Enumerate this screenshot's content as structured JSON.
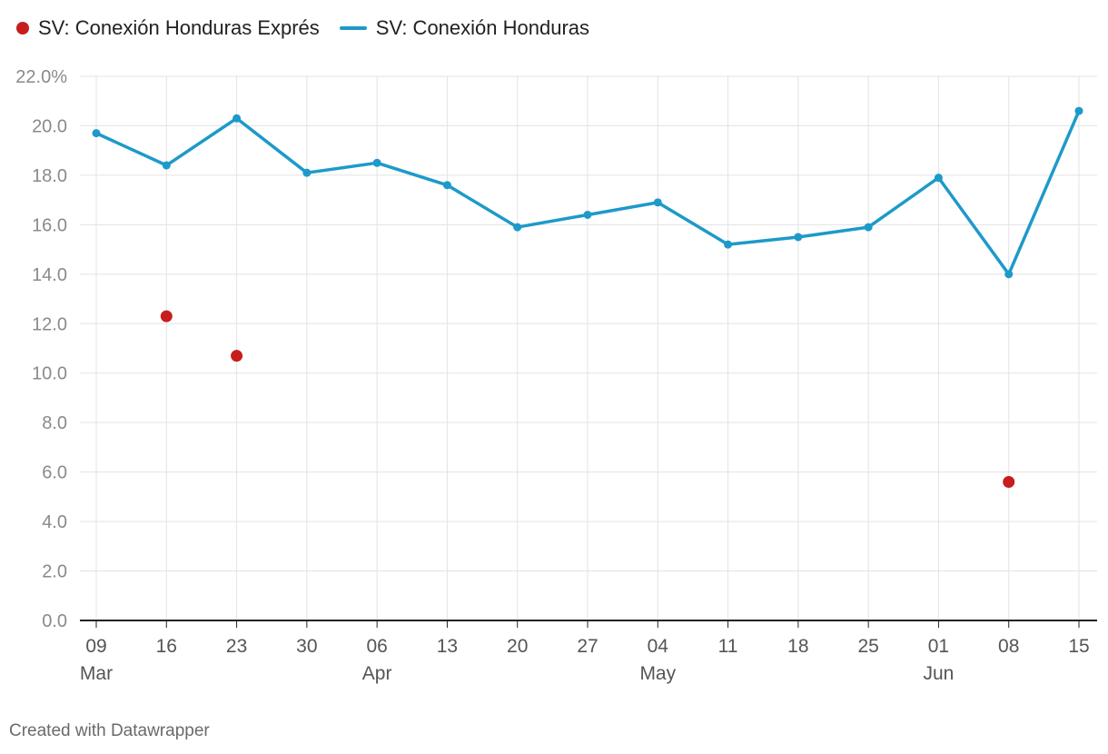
{
  "legend": {
    "items": [
      {
        "label": "SV: Conexión Honduras Exprés",
        "color": "#c71e1d",
        "style": "dot"
      },
      {
        "label": "SV: Conexión Honduras",
        "color": "#1d9ac9",
        "style": "line"
      }
    ]
  },
  "credit": "Created with Datawrapper",
  "chart_data": {
    "type": "line",
    "categories": [
      "09",
      "16",
      "23",
      "30",
      "06",
      "13",
      "20",
      "27",
      "04",
      "11",
      "18",
      "25",
      "01",
      "08",
      "15"
    ],
    "month_labels": [
      {
        "index": 0,
        "label": "Mar"
      },
      {
        "index": 4,
        "label": "Apr"
      },
      {
        "index": 8,
        "label": "May"
      },
      {
        "index": 12,
        "label": "Jun"
      }
    ],
    "ylim": [
      0,
      22
    ],
    "yticks": [
      0,
      2,
      4,
      6,
      8,
      10,
      12,
      14,
      16,
      18,
      20,
      22
    ],
    "ytick_labels": [
      "0.0",
      "2.0",
      "4.0",
      "6.0",
      "8.0",
      "10.0",
      "12.0",
      "14.0",
      "16.0",
      "18.0",
      "20.0",
      "22.0%"
    ],
    "grid": true,
    "series": [
      {
        "name": "SV: Conexión Honduras",
        "color": "#1d9ac9",
        "kind": "line",
        "values": [
          19.7,
          18.4,
          20.3,
          18.1,
          18.5,
          17.6,
          15.9,
          16.4,
          16.9,
          15.2,
          15.5,
          15.9,
          17.9,
          14.0,
          20.6
        ]
      },
      {
        "name": "SV: Conexión Honduras Exprés",
        "color": "#c71e1d",
        "kind": "dots",
        "values": [
          null,
          12.3,
          10.7,
          null,
          null,
          null,
          null,
          null,
          null,
          null,
          null,
          null,
          null,
          5.6,
          null
        ]
      }
    ]
  }
}
